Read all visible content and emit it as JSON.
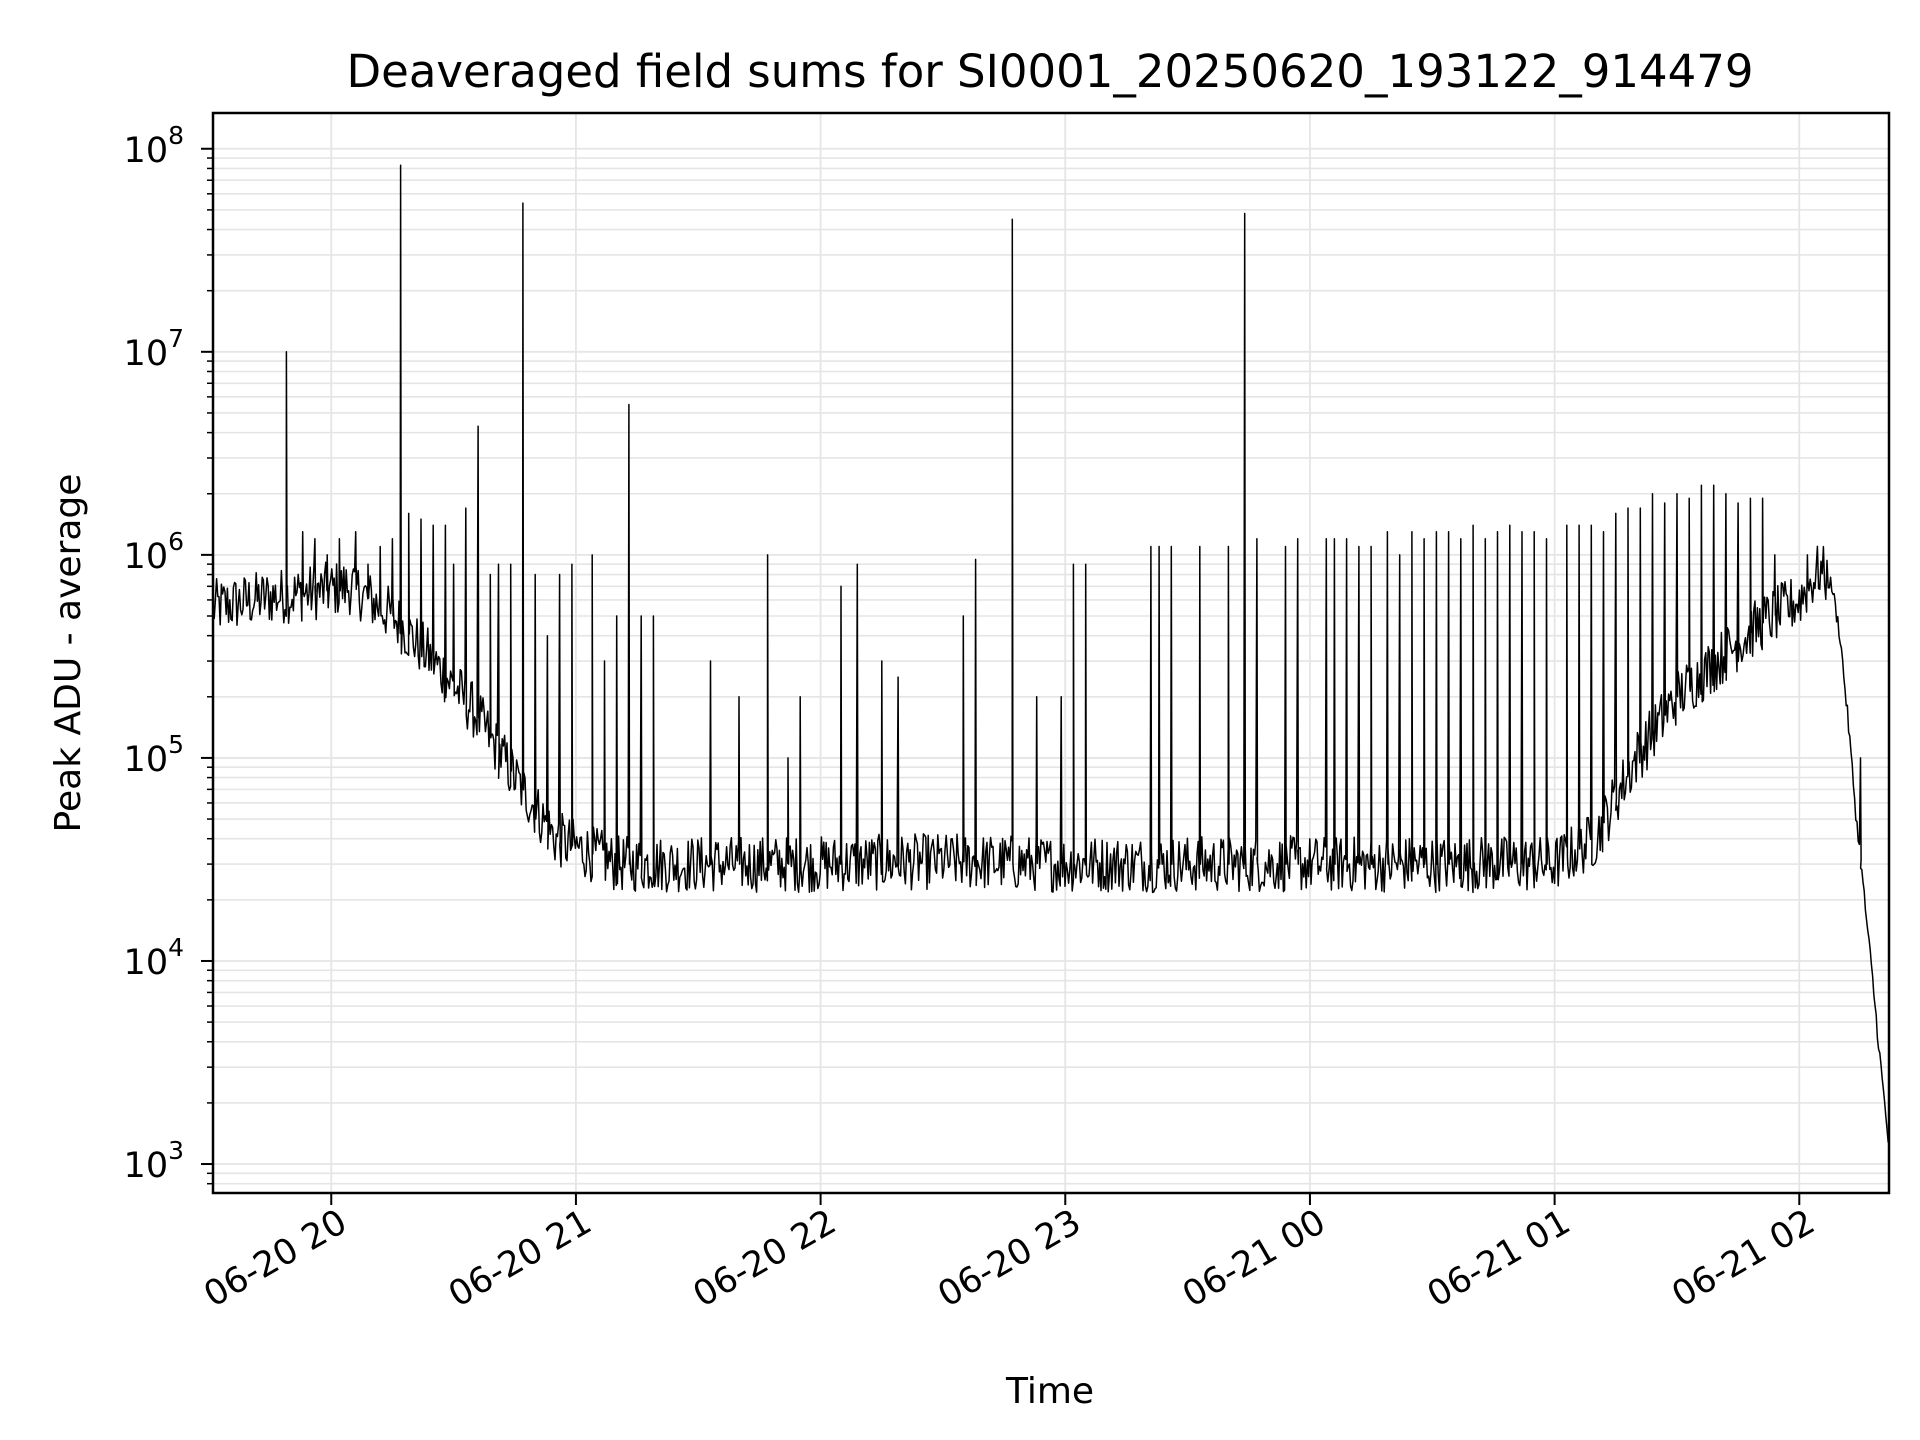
{
  "chart_data": {
    "type": "line",
    "title": "Deaveraged field sums for SI0001_20250620_193122_914479",
    "xlabel": "Time",
    "ylabel": "Peak ADU - average",
    "x_axis": {
      "type": "datetime",
      "range": [
        "06-20 19:31",
        "06-21 02:22"
      ],
      "ticks": [
        {
          "value": "06-20 20:00",
          "label": "06-20 20"
        },
        {
          "value": "06-20 21:00",
          "label": "06-20 21"
        },
        {
          "value": "06-20 22:00",
          "label": "06-20 22"
        },
        {
          "value": "06-20 23:00",
          "label": "06-20 23"
        },
        {
          "value": "06-21 00:00",
          "label": "06-21 00"
        },
        {
          "value": "06-21 01:00",
          "label": "06-21 01"
        },
        {
          "value": "06-21 02:00",
          "label": "06-21 02"
        }
      ],
      "tick_rotation_deg": 30
    },
    "y_axis": {
      "scale": "log",
      "range": [
        720,
        150000000
      ],
      "ticks": [
        {
          "value": 1000,
          "base": "10",
          "exp": "3"
        },
        {
          "value": 10000,
          "base": "10",
          "exp": "4"
        },
        {
          "value": 100000,
          "base": "10",
          "exp": "5"
        },
        {
          "value": 1000000,
          "base": "10",
          "exp": "6"
        },
        {
          "value": 10000000,
          "base": "10",
          "exp": "7"
        },
        {
          "value": 100000000,
          "base": "10",
          "exp": "8"
        }
      ]
    },
    "grid": true,
    "minor_grid": true,
    "line_color": "#000000",
    "grid_color": "#e5e5e5",
    "series": [
      {
        "baseline": {
          "x": [
            "06-20 19:31",
            "06-20 19:45",
            "06-20 19:55",
            "06-20 20:05",
            "06-20 20:15",
            "06-20 20:25",
            "06-20 20:35",
            "06-20 20:45",
            "06-20 20:55",
            "06-20 21:10",
            "06-20 21:30",
            "06-20 22:00",
            "06-20 22:30",
            "06-20 23:00",
            "06-20 23:30",
            "06-21 00:00",
            "06-21 00:30",
            "06-21 01:00",
            "06-21 01:10",
            "06-21 01:20",
            "06-21 01:30",
            "06-21 01:40",
            "06-21 01:50",
            "06-21 02:00",
            "06-21 02:05",
            "06-21 02:08",
            "06-21 02:10",
            "06-21 02:12",
            "06-21 02:14",
            "06-21 02:16",
            "06-21 02:18",
            "06-21 02:20",
            "06-21 02:22"
          ],
          "y": [
            550000,
            620000,
            650000,
            700000,
            500000,
            300000,
            170000,
            80000,
            40000,
            30000,
            30000,
            30000,
            31000,
            30000,
            30000,
            30000,
            30000,
            30000,
            40000,
            100000,
            200000,
            300000,
            450000,
            600000,
            850000,
            700000,
            400000,
            150000,
            50000,
            20000,
            8000,
            3000,
            1200
          ]
        },
        "spikes": {
          "x": [
            "06-20 19:49",
            "06-20 19:53",
            "06-20 19:56",
            "06-20 19:59",
            "06-20 20:02",
            "06-20 20:06",
            "06-20 20:09",
            "06-20 20:12",
            "06-20 20:15",
            "06-20 20:17",
            "06-20 20:19",
            "06-20 20:22",
            "06-20 20:25",
            "06-20 20:28",
            "06-20 20:30",
            "06-20 20:33",
            "06-20 20:36",
            "06-20 20:39",
            "06-20 20:41",
            "06-20 20:44",
            "06-20 20:47",
            "06-20 20:50",
            "06-20 20:53",
            "06-20 20:56",
            "06-20 20:59",
            "06-20 21:04",
            "06-20 21:07",
            "06-20 21:10",
            "06-20 21:13",
            "06-20 21:16",
            "06-20 21:19",
            "06-20 21:33",
            "06-20 21:40",
            "06-20 21:47",
            "06-20 21:52",
            "06-20 21:55",
            "06-20 22:05",
            "06-20 22:09",
            "06-20 22:15",
            "06-20 22:19",
            "06-20 22:35",
            "06-20 22:38",
            "06-20 22:47",
            "06-20 22:53",
            "06-20 22:59",
            "06-20 23:02",
            "06-20 23:05",
            "06-20 23:21",
            "06-20 23:23",
            "06-20 23:26",
            "06-20 23:33",
            "06-20 23:40",
            "06-20 23:44",
            "06-20 23:47",
            "06-20 23:54",
            "06-20 23:57",
            "06-21 00:04",
            "06-21 00:06",
            "06-21 00:09",
            "06-21 00:12",
            "06-21 00:15",
            "06-21 00:19",
            "06-21 00:22",
            "06-21 00:25",
            "06-21 00:28",
            "06-21 00:31",
            "06-21 00:34",
            "06-21 00:37",
            "06-21 00:40",
            "06-21 00:43",
            "06-21 00:46",
            "06-21 00:49",
            "06-21 00:52",
            "06-21 00:55",
            "06-21 00:58",
            "06-21 01:03",
            "06-21 01:06",
            "06-21 01:09",
            "06-21 01:12",
            "06-21 01:15",
            "06-21 01:18",
            "06-21 01:21",
            "06-21 01:24",
            "06-21 01:27",
            "06-21 01:30",
            "06-21 01:33",
            "06-21 01:36",
            "06-21 01:39",
            "06-21 01:42",
            "06-21 01:45",
            "06-21 01:48",
            "06-21 01:51",
            "06-21 01:54",
            "06-21 02:02",
            "06-21 02:15"
          ],
          "y": [
            10000000,
            1300000,
            1200000,
            1000000,
            1200000,
            1300000,
            900000,
            1100000,
            1200000,
            83000000,
            1600000,
            1500000,
            1400000,
            1400000,
            900000,
            1700000,
            4300000,
            800000,
            900000,
            900000,
            54000000,
            800000,
            400000,
            800000,
            900000,
            1000000,
            300000,
            500000,
            5500000,
            500000,
            500000,
            300000,
            200000,
            1000000,
            100000,
            200000,
            700000,
            900000,
            300000,
            250000,
            500000,
            950000,
            45000000,
            200000,
            200000,
            900000,
            900000,
            1100000,
            1100000,
            1100000,
            1100000,
            1100000,
            48000000,
            1200000,
            1100000,
            1200000,
            1200000,
            1200000,
            1200000,
            1100000,
            1100000,
            1300000,
            1000000,
            1300000,
            1200000,
            1300000,
            1300000,
            1200000,
            1400000,
            1200000,
            1300000,
            1400000,
            1300000,
            1300000,
            1200000,
            1400000,
            1400000,
            1400000,
            1300000,
            1600000,
            1700000,
            1700000,
            2000000,
            1800000,
            2000000,
            1900000,
            2200000,
            2200000,
            2000000,
            1800000,
            1900000,
            1900000,
            1000000,
            1000000,
            100000
          ]
        },
        "description": "noisy line; spikes rise from the baseline at the listed times"
      }
    ]
  }
}
